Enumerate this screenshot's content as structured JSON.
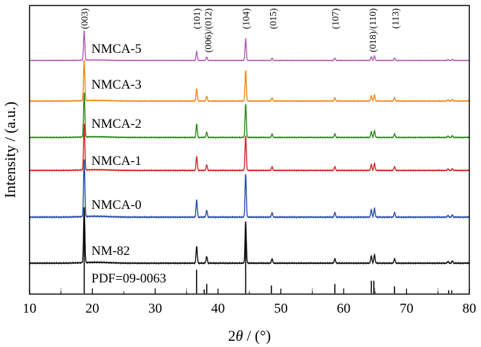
{
  "chart_data": {
    "type": "line",
    "xlabel_prefix": "2",
    "xlabel_symbol": "θ",
    "xlabel_suffix": " / (°)",
    "ylabel": "Intensity / (a.u.)",
    "xlim": [
      10,
      80
    ],
    "xticks": [
      "10",
      "20",
      "30",
      "40",
      "50",
      "60",
      "70",
      "80"
    ],
    "grid": false,
    "peaks": [
      18.7,
      36.6,
      38.2,
      44.4,
      48.6,
      58.6,
      64.4,
      64.9,
      68.1,
      76.6,
      77.3
    ],
    "peak_intensities": [
      1.0,
      0.3,
      0.12,
      0.75,
      0.08,
      0.08,
      0.13,
      0.15,
      0.08,
      0.03,
      0.04
    ],
    "series": [
      {
        "name": "NMCA-5",
        "color": "#b25fb5",
        "scale": 0.55,
        "offset": 5
      },
      {
        "name": "NMCA-3",
        "color": "#f08a1c",
        "scale": 0.62,
        "offset": 4
      },
      {
        "name": "NMCA-2",
        "color": "#2f8a1f",
        "scale": 0.62,
        "offset": 3
      },
      {
        "name": "NMCA-1",
        "color": "#d42a2a",
        "scale": 0.65,
        "offset": 2
      },
      {
        "name": "NMCA-0",
        "color": "#2a50a8",
        "scale": 0.72,
        "offset": 1
      },
      {
        "name": "NM-82",
        "color": "#111111",
        "scale": 0.75,
        "offset": 0
      }
    ],
    "reference": {
      "label": "PDF=09-0063",
      "lines": [
        {
          "x": 18.7,
          "h": 1.0
        },
        {
          "x": 36.6,
          "h": 0.3
        },
        {
          "x": 37.8,
          "h": 0.05
        },
        {
          "x": 38.2,
          "h": 0.12
        },
        {
          "x": 44.4,
          "h": 0.9
        },
        {
          "x": 48.5,
          "h": 0.1
        },
        {
          "x": 58.6,
          "h": 0.12
        },
        {
          "x": 64.4,
          "h": 0.16
        },
        {
          "x": 64.8,
          "h": 0.16
        },
        {
          "x": 68.1,
          "h": 0.09
        },
        {
          "x": 76.7,
          "h": 0.04
        },
        {
          "x": 77.2,
          "h": 0.04
        }
      ]
    },
    "annotations": [
      {
        "text": "(003)",
        "x": 18.7
      },
      {
        "text": "(101)",
        "x": 36.6
      },
      {
        "text": "(006)/(012)",
        "x": 38.4
      },
      {
        "text": "(104)",
        "x": 44.4
      },
      {
        "text": "(015)",
        "x": 48.7
      },
      {
        "text": "(107)",
        "x": 58.6
      },
      {
        "text": "(018)/(110)",
        "x": 64.6
      },
      {
        "text": "(113)",
        "x": 68.2
      }
    ],
    "colors": {
      "axis": "#000000",
      "reference": "#000000",
      "minor_tick": "#888888"
    }
  }
}
